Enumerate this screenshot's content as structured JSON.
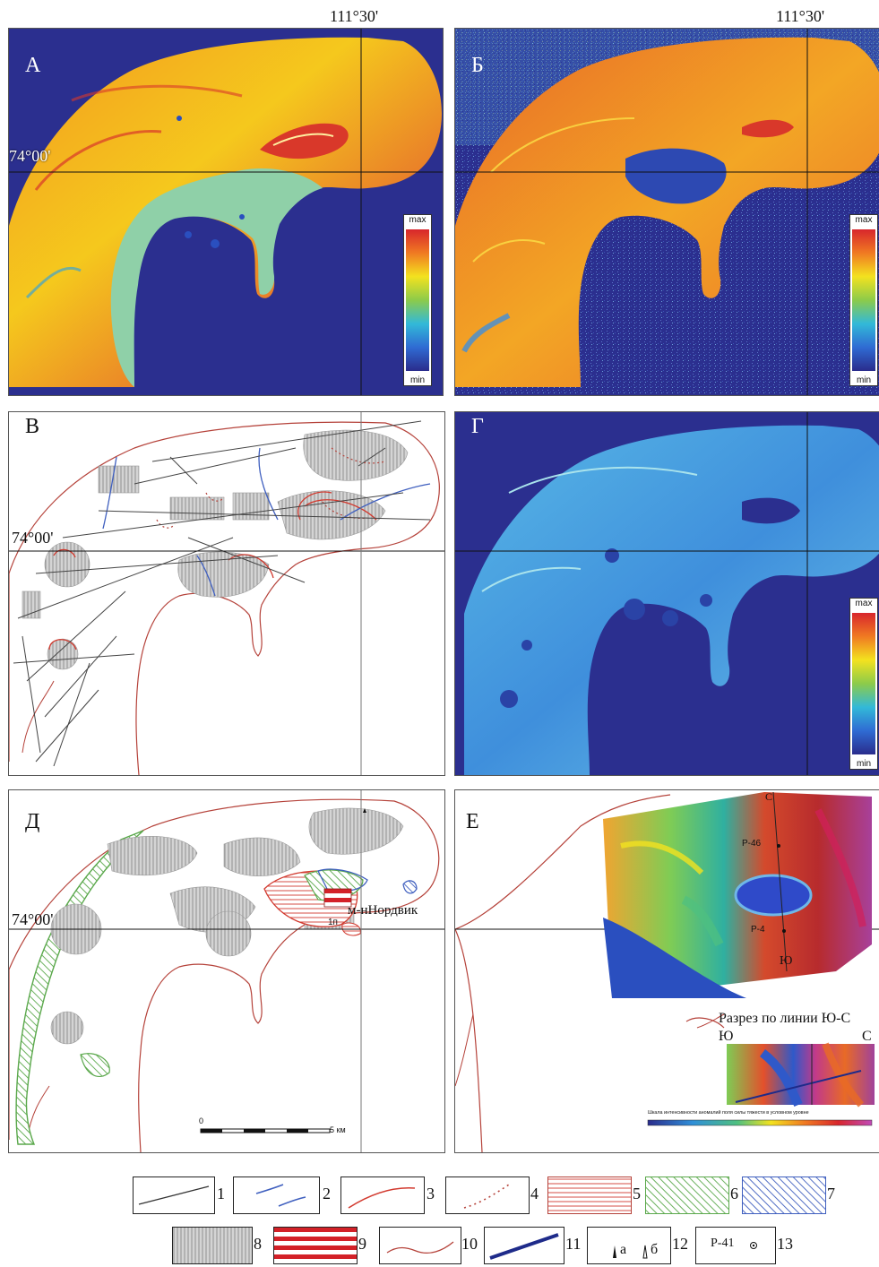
{
  "meridian_label": "111°30'",
  "parallel_label": "74°00'",
  "panels": {
    "a": "А",
    "b": "Б",
    "v": "В",
    "g": "Г",
    "d": "Д",
    "e": "Е"
  },
  "scale": {
    "max": "max",
    "min": "min"
  },
  "panel_d": {
    "place": "м-нНордвик",
    "place_sub": "1п",
    "scalebar_zero": "0",
    "scalebar_end": "5 км"
  },
  "panel_e": {
    "well_1": "Р-46",
    "well_2": "Р-4",
    "point_north": "С",
    "point_south": "Ю",
    "section_title": "Разрез по линии Ю-С",
    "section_south": "Ю",
    "section_north": "С",
    "scale_caption": "Шкала интенсивности аномалий поля силы тяжести в условном уровне"
  },
  "legend": [
    {
      "num": "1",
      "symbol": "thin-line"
    },
    {
      "num": "2",
      "symbol": "blue-hachured-line"
    },
    {
      "num": "3",
      "symbol": "red-arc"
    },
    {
      "num": "4",
      "symbol": "red-dotted-line"
    },
    {
      "num": "5",
      "symbol": "red-hatch"
    },
    {
      "num": "6",
      "symbol": "green-hatch"
    },
    {
      "num": "7",
      "symbol": "blue-hatch"
    },
    {
      "num": "8",
      "symbol": "grey-vertical-hatch"
    },
    {
      "num": "9",
      "symbol": "red-bold-stripes"
    },
    {
      "num": "10",
      "symbol": "coast-line"
    },
    {
      "num": "11",
      "symbol": "blue-bold-line"
    },
    {
      "num": "12",
      "symbol": "well-symbols",
      "a": "а",
      "b": "б"
    },
    {
      "num": "13",
      "symbol": "well-label",
      "text": "Р-41"
    }
  ],
  "colors": {
    "sea": "#2b2f8f",
    "hot": "#e8501e",
    "land_warm": "#f2c21a",
    "land_cool": "#62c6b4",
    "coast": "#b5423a",
    "hatch_grey": "#8a8a8a"
  }
}
